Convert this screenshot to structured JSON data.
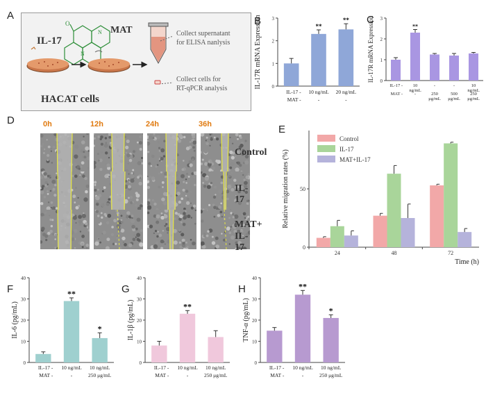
{
  "figure": {
    "panel_letters": [
      "A",
      "B",
      "C",
      "D",
      "E",
      "F",
      "G",
      "H"
    ]
  },
  "panelA": {
    "il17_label": "IL-17",
    "mat_label": "MAT",
    "cells_label": "HACAT cells",
    "collect1": [
      "Collect supernatant",
      "for ELISA nanlysis"
    ],
    "collect2": [
      "Collect cells for",
      "RT-qPCR analysis"
    ]
  },
  "panelD": {
    "time_labels": [
      "0h",
      "12h",
      "24h",
      "36h"
    ],
    "row_labels": [
      "Control",
      "IL-17",
      "MAT+",
      "IL-17"
    ]
  },
  "chart_data": [
    {
      "id": "B",
      "type": "bar",
      "ylabel": "IL-17R mRNA Expression",
      "categories": [
        "",
        "10 ng/mL",
        "20 ng/mL"
      ],
      "il17_row": [
        "IL-17 -",
        "10 ng/mL",
        "20 ng/mL"
      ],
      "mat_row": [
        "MAT -",
        "-",
        "-"
      ],
      "values": [
        1.0,
        2.3,
        2.5
      ],
      "errors": [
        0.22,
        0.18,
        0.25
      ],
      "sig": [
        "",
        "**",
        "**"
      ],
      "ylim": [
        0,
        3
      ],
      "yticks": [
        "0",
        "1",
        "2",
        "3"
      ],
      "color": "#8fa7d8"
    },
    {
      "id": "C",
      "type": "bar",
      "ylabel": "IL-17R mRNA Expression",
      "il17_row": [
        "IL-17 -",
        "10 ng/mL",
        "-",
        "-",
        "10 ng/mL"
      ],
      "mat_row": [
        "MAT -",
        "-",
        "250 μg/mL",
        "500 μg/mL",
        "250 μg/mL"
      ],
      "values": [
        1.0,
        2.3,
        1.25,
        1.2,
        1.3
      ],
      "errors": [
        0.1,
        0.15,
        0.05,
        0.1,
        0.05
      ],
      "sig": [
        "",
        "**",
        "",
        "",
        ""
      ],
      "ylim": [
        0,
        3
      ],
      "yticks": [
        "0",
        "1",
        "2",
        "3"
      ],
      "color": "#a996e2"
    },
    {
      "id": "E",
      "type": "bar",
      "ylabel": "Relative migration rates (%)",
      "xlabel": "Time (h)",
      "categories": [
        "24",
        "48",
        "72"
      ],
      "series": [
        {
          "name": "Control",
          "values": [
            8,
            27,
            53
          ],
          "errors": [
            1,
            2,
            1
          ],
          "color": "#f2a8a8"
        },
        {
          "name": "IL-17",
          "values": [
            18,
            63,
            89
          ],
          "errors": [
            5,
            7,
            1
          ],
          "color": "#a9d59a"
        },
        {
          "name": "MAT+IL-17",
          "values": [
            10,
            25,
            13
          ],
          "errors": [
            4,
            12,
            3
          ],
          "color": "#b5b3db"
        }
      ],
      "ylim": [
        0,
        100
      ],
      "yticks": [
        "0",
        "50"
      ],
      "legend": "top-left"
    },
    {
      "id": "F",
      "type": "bar",
      "ylabel": "IL-6 (pg/mL)",
      "il17_row": [
        "IL-17 -",
        "10 ng/mL",
        "10 ng/mL"
      ],
      "mat_row": [
        "MAT -",
        "-",
        "250 μg/mL"
      ],
      "values": [
        4,
        29,
        11.5
      ],
      "errors": [
        1,
        1.5,
        2.5
      ],
      "sig": [
        "",
        "**",
        "*"
      ],
      "ylim": [
        0,
        40
      ],
      "yticks": [
        "0",
        "10",
        "20",
        "30",
        "40"
      ],
      "color": "#9fd0cf"
    },
    {
      "id": "G",
      "type": "bar",
      "ylabel": "IL-1β (pg/mL)",
      "il17_row": [
        "IL-17 -",
        "10 ng/mL",
        "10 ng/mL"
      ],
      "mat_row": [
        "MAT -",
        "-",
        "250 μg/mL"
      ],
      "values": [
        8,
        23,
        12
      ],
      "errors": [
        2,
        1.5,
        3
      ],
      "sig": [
        "",
        "**",
        ""
      ],
      "ylim": [
        0,
        40
      ],
      "yticks": [
        "0",
        "10",
        "20",
        "30",
        "40"
      ],
      "color": "#f0c8dc"
    },
    {
      "id": "H",
      "type": "bar",
      "ylabel": "TNF-α (pg/mL)",
      "il17_row": [
        "IL-17 -",
        "10 ng/mL",
        "10 ng/mL"
      ],
      "mat_row": [
        "MAT -",
        "-",
        "250 μg/mL"
      ],
      "values": [
        15,
        32,
        21
      ],
      "errors": [
        1.5,
        2,
        1.5
      ],
      "sig": [
        "",
        "**",
        "*"
      ],
      "ylim": [
        0,
        40
      ],
      "yticks": [
        "0",
        "10",
        "20",
        "30",
        "40"
      ],
      "color": "#b79ad0"
    }
  ]
}
